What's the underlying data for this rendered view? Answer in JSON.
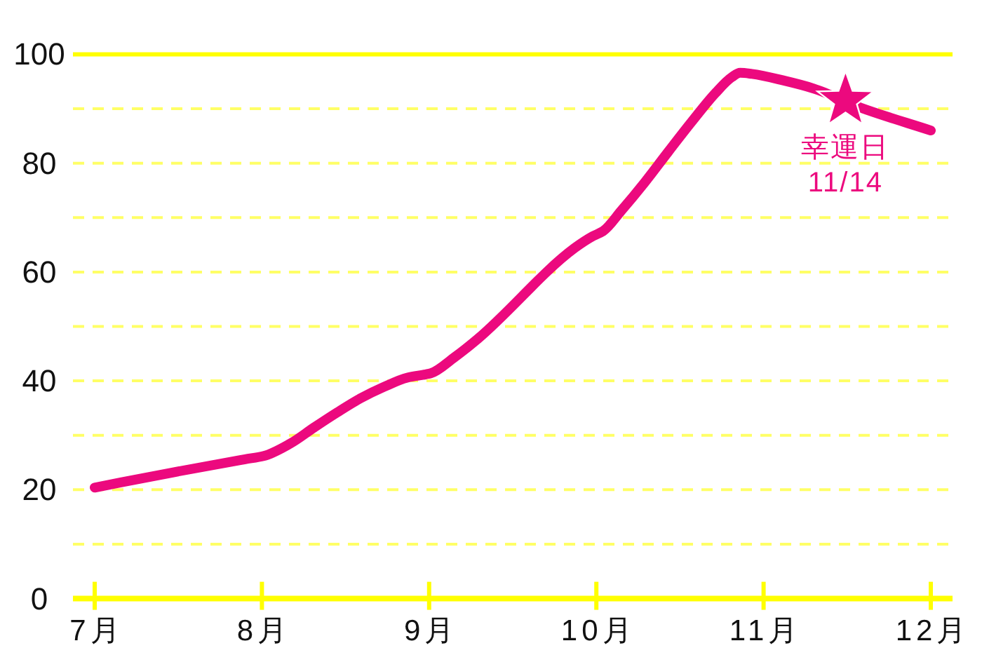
{
  "chart_data": {
    "type": "line",
    "x": [
      7,
      7.47,
      7.9,
      8.01,
      8.17,
      8.31,
      8.45,
      8.59,
      8.73,
      8.87,
      8.98,
      9.01,
      9.15,
      9.29,
      9.87,
      9.98,
      10.04,
      10.15,
      10.29,
      10.43,
      10.57,
      10.71,
      10.81,
      10.86,
      10.93,
      11.13,
      11.3,
      11.58,
      12
    ],
    "series": [
      {
        "color": "#ec097e",
        "values": [
          20.4,
          23.2,
          25.6,
          26.2,
          28.5,
          31.4,
          34.2,
          36.8,
          38.9,
          40.6,
          41.2,
          41.4,
          44.3,
          47.7,
          64.4,
          66.6,
          67.5,
          71.3,
          76.5,
          82.1,
          87.6,
          92.8,
          95.8,
          96.6,
          96.4,
          95.1,
          93.7,
          90.2,
          86
        ]
      },
      {
        "type": "scatter",
        "marker": "star",
        "color": "#ec097e",
        "x": [
          11.49
        ],
        "values": [
          91.5
        ]
      }
    ],
    "xlim": [
      6.87,
      12.13
    ],
    "ylim": [
      0,
      100
    ],
    "xticks": [
      {
        "value": 7,
        "label": "7月"
      },
      {
        "value": 8,
        "label": "8月"
      },
      {
        "value": 9,
        "label": "9月"
      },
      {
        "value": 10,
        "label": "10月"
      },
      {
        "value": 11,
        "label": "11月"
      },
      {
        "value": 12,
        "label": "12月"
      }
    ],
    "yticks": [
      0,
      {
        "value": 10,
        "label": null
      },
      20,
      {
        "value": 30,
        "label": null
      },
      40,
      {
        "value": 50,
        "label": null
      },
      60,
      {
        "value": 70,
        "label": null
      },
      80,
      {
        "value": 90,
        "label": null
      },
      100
    ],
    "grid": "y",
    "annotations": [
      {
        "text": "幸運日\n11/14",
        "x": 11.49,
        "y": 91.5
      }
    ]
  }
}
